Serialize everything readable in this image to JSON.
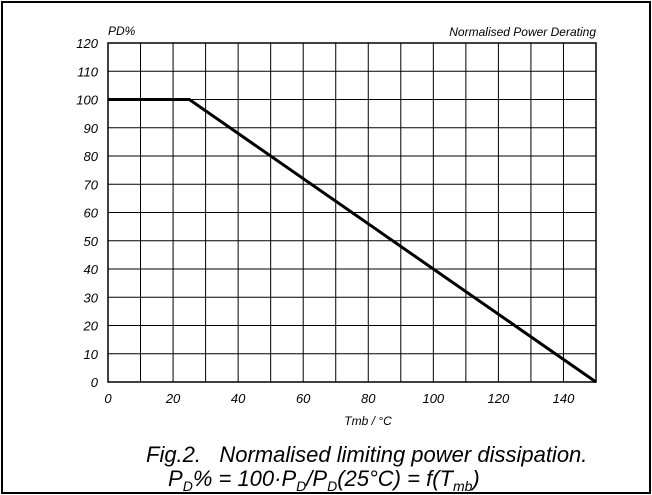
{
  "chart_data": {
    "type": "line",
    "title": "Normalised Power Derating",
    "ylabel": "PD%",
    "xlabel": "Tmb / °C",
    "xlim": [
      0,
      150
    ],
    "ylim": [
      0,
      120
    ],
    "x_ticks": [
      0,
      20,
      40,
      60,
      80,
      100,
      120,
      140
    ],
    "y_ticks": [
      0,
      10,
      20,
      30,
      40,
      50,
      60,
      70,
      80,
      90,
      100,
      110,
      120
    ],
    "x_grid_step": 10,
    "y_grid_step": 10,
    "grid": true,
    "series": [
      {
        "x": [
          0,
          25,
          150
        ],
        "y": [
          100,
          100,
          0
        ]
      }
    ]
  },
  "caption": {
    "line1": "Fig.2.   Normalised limiting power dissipation.",
    "line2_parts": [
      "P",
      "D",
      "% = 100·P",
      "D",
      "/P",
      "D",
      "(25°C) = f(T",
      "mb",
      ")"
    ]
  },
  "colors": {
    "line": "#000000",
    "grid": "#000000",
    "background": "#ffffff"
  }
}
